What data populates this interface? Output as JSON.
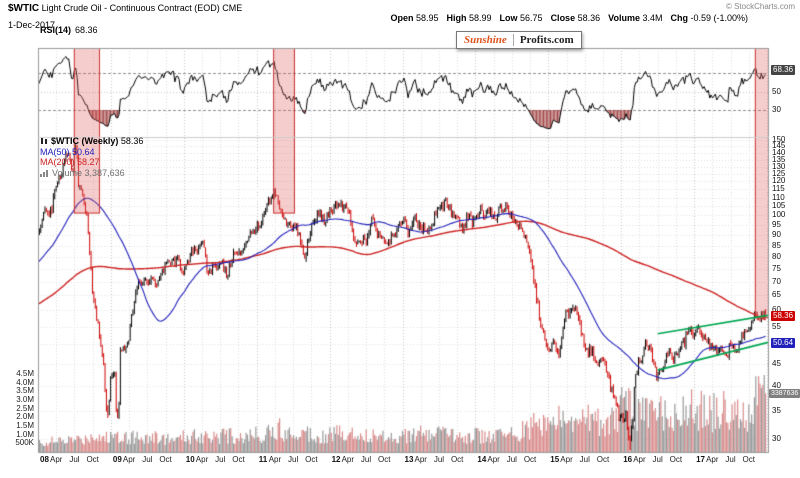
{
  "header": {
    "symbol": "$WTIC",
    "title": "Light Crude Oil - Continuous Contract (EOD) CME",
    "date": "1-Dec-2017",
    "copyright": "© StockCharts.com",
    "quote": [
      {
        "label": "Open",
        "value": "58.95"
      },
      {
        "label": "High",
        "value": "58.99"
      },
      {
        "label": "Low",
        "value": "56.75"
      },
      {
        "label": "Close",
        "value": "58.36"
      },
      {
        "label": "Volume",
        "value": "3.4M"
      },
      {
        "label": "Chg",
        "value": "-0.59 (-1.00%)"
      }
    ]
  },
  "logo": {
    "part1": "Sunshine",
    "part2": "Profits.com"
  },
  "rsi_panel": {
    "label": "RSI(14)",
    "value": "68.36",
    "badge": "68.36"
  },
  "price_panel": {
    "symbol_label": "$WTIC (Weekly)",
    "symbol_value": "58.36",
    "ma50_label": "MA(50)",
    "ma50_value": "50.64",
    "ma200_label": "MA(200)",
    "ma200_value": "58.27",
    "volume_label": "Volume",
    "volume_value": "3,387,636",
    "badge_close": "58.36",
    "badge_ma50": "50.64",
    "badge_volume": "3387636"
  },
  "chart_data": {
    "type": "candlestick",
    "symbol": "$WTIC",
    "timeframe": "weekly",
    "x_range": [
      "2008-01",
      "2017-12"
    ],
    "price_scale": "log",
    "price_axis": {
      "ticks": [
        150,
        145,
        140,
        135,
        130,
        125,
        120,
        115,
        110,
        105,
        100,
        95,
        90,
        85,
        80,
        75,
        70,
        65,
        60,
        55,
        50,
        45,
        40,
        35,
        30
      ],
      "top_value": 150,
      "bottom_value": 28
    },
    "volume_axis": {
      "tick_labels": [
        "4.5M",
        "4.0M",
        "3.5M",
        "3.0M",
        "2.5M",
        "2.0M",
        "1.5M",
        "1.0M",
        "500K"
      ],
      "tick_values": [
        4.5,
        4.0,
        3.5,
        3.0,
        2.5,
        2.0,
        1.5,
        1.0,
        0.5
      ]
    },
    "rsi": {
      "period": 14,
      "last": 68.36,
      "ticks": [
        70,
        50,
        30
      ],
      "overbought": 70,
      "oversold": 30
    },
    "x_axis": {
      "years": [
        "08",
        "09",
        "10",
        "11",
        "12",
        "13",
        "14",
        "15",
        "16",
        "17"
      ],
      "quarter_labels": [
        "Apr",
        "Jul",
        "Oct"
      ]
    },
    "last": {
      "open": 58.95,
      "high": 58.99,
      "low": 56.75,
      "close": 58.36,
      "volume": 3387636,
      "change": "-0.59 (-1.00%)"
    },
    "ma50_last": 50.64,
    "ma200_last": 58.27,
    "monthly_close": [
      91.7,
      101.8,
      101.6,
      113.5,
      127.4,
      140.0,
      124.1,
      115.5,
      100.6,
      67.8,
      54.4,
      44.6,
      41.7,
      44.8,
      49.7,
      51.1,
      66.3,
      69.9,
      69.5,
      70.0,
      70.6,
      77.0,
      77.3,
      79.4,
      72.9,
      79.7,
      83.8,
      86.2,
      74.0,
      75.6,
      78.9,
      71.9,
      80.0,
      81.4,
      84.1,
      91.4,
      92.2,
      97.0,
      106.7,
      113.9,
      102.7,
      95.4,
      95.7,
      88.8,
      79.2,
      93.2,
      100.4,
      98.8,
      98.5,
      107.1,
      103.0,
      104.9,
      86.5,
      85.0,
      88.1,
      96.5,
      92.2,
      86.2,
      88.9,
      91.8,
      97.5,
      92.1,
      97.2,
      93.5,
      91.9,
      96.6,
      105.0,
      107.7,
      102.3,
      96.4,
      92.7,
      98.4,
      97.5,
      102.6,
      101.6,
      99.7,
      102.7,
      105.4,
      98.2,
      96.0,
      91.2,
      80.5,
      66.2,
      53.3,
      48.2,
      49.8,
      47.6,
      59.6,
      60.3,
      59.5,
      47.1,
      49.2,
      45.1,
      46.6,
      41.7,
      37.0,
      33.6,
      33.8,
      38.3,
      45.9,
      49.1,
      48.3,
      41.6,
      44.7,
      48.2,
      46.9,
      49.4,
      53.7,
      52.8,
      54.0,
      50.6,
      49.3,
      48.3,
      46.0,
      50.2,
      47.2,
      51.7,
      54.4,
      57.4,
      58.36
    ],
    "pre_monthly_close": [
      33,
      35,
      36,
      37,
      40,
      37,
      41,
      44,
      46,
      50,
      48,
      43,
      48,
      51,
      55,
      55,
      50,
      56,
      59,
      69,
      66,
      62,
      58,
      61,
      68,
      61,
      66,
      72,
      71,
      74,
      74,
      70,
      63,
      58,
      63,
      61,
      58,
      62,
      66,
      64,
      64,
      71,
      78,
      74,
      81,
      94,
      89,
      96
    ],
    "monthly_volume_m": [
      0.45,
      0.5,
      0.55,
      0.5,
      0.55,
      0.6,
      0.65,
      0.6,
      0.7,
      0.9,
      0.8,
      0.7,
      0.8,
      0.85,
      0.9,
      0.8,
      0.75,
      0.8,
      0.7,
      0.75,
      0.7,
      0.7,
      0.65,
      0.6,
      0.75,
      0.8,
      0.85,
      0.8,
      0.9,
      0.95,
      0.8,
      0.85,
      0.8,
      0.75,
      0.8,
      0.85,
      0.9,
      0.95,
      1.1,
      1.0,
      1.2,
      1.0,
      0.9,
      1.1,
      1.0,
      0.95,
      0.9,
      0.85,
      0.9,
      1.0,
      0.95,
      0.9,
      1.0,
      0.95,
      0.85,
      0.8,
      0.85,
      0.8,
      0.85,
      0.8,
      0.85,
      0.9,
      0.85,
      0.9,
      0.85,
      0.9,
      0.95,
      0.9,
      0.85,
      0.9,
      0.85,
      0.8,
      0.85,
      0.8,
      0.85,
      0.8,
      0.85,
      0.9,
      0.95,
      1.0,
      1.1,
      1.3,
      1.4,
      1.5,
      1.6,
      1.5,
      1.6,
      1.5,
      1.4,
      1.5,
      1.7,
      1.9,
      1.7,
      1.5,
      1.6,
      1.8,
      2.2,
      2.6,
      2.4,
      2.1,
      2.0,
      1.9,
      2.0,
      2.1,
      2.2,
      2.1,
      2.3,
      2.2,
      2.1,
      2.2,
      2.3,
      2.0,
      2.1,
      2.3,
      2.0,
      1.9,
      1.8,
      1.9,
      2.6,
      3.4
    ],
    "weekly_close_overrides": {
      "26": 139.2,
      "27": 144.6,
      "28": 137.5,
      "48": 39.0,
      "49": 35.4,
      "50": 34.2,
      "51": 37.0,
      "56": 35.0,
      "57": 33.9,
      "58": 36.2,
      "422": 31.6,
      "423": 30.3,
      "424": 29.8,
      "425": 31.9,
      "426": 33.2
    },
    "wick_overrides": {
      "27": {
        "high": 147.2
      },
      "424": {
        "low": 28.3
      }
    },
    "annotations": {
      "red_boxes": [
        {
          "month_from": 5.9,
          "month_to": 10.2,
          "price_bottom": 101
        },
        {
          "month_from": 38.7,
          "month_to": 42.3,
          "price_bottom": 101
        },
        {
          "month_from": 118.0,
          "month_to": 120.8,
          "price_bottom": 57.5
        }
      ],
      "green_channel": [
        {
          "month_from": 102,
          "price_from": 52.9,
          "month_to": 120.5,
          "price_to": 58.4
        },
        {
          "month_from": 102,
          "price_from": 43.5,
          "month_to": 120.5,
          "price_to": 50.5
        }
      ]
    },
    "colors": {
      "up": "#000000",
      "down": "#cc0000",
      "ma50": "#2222bb",
      "ma200": "#cc2222",
      "volume_up": "#9a9a9a",
      "volume_down": "#d98c8c",
      "rsi_line": "#000000",
      "rsi_oversold_fill": "#a04040",
      "box_fill": "rgba(226,88,88,0.30)",
      "box_border": "#cc3333",
      "channel": "#00a651",
      "badge_rsi_bg": "#444444",
      "badge_close_bg": "#cc0000",
      "badge_ma50_bg": "#2222bb",
      "badge_volume_bg": "#808080"
    }
  }
}
